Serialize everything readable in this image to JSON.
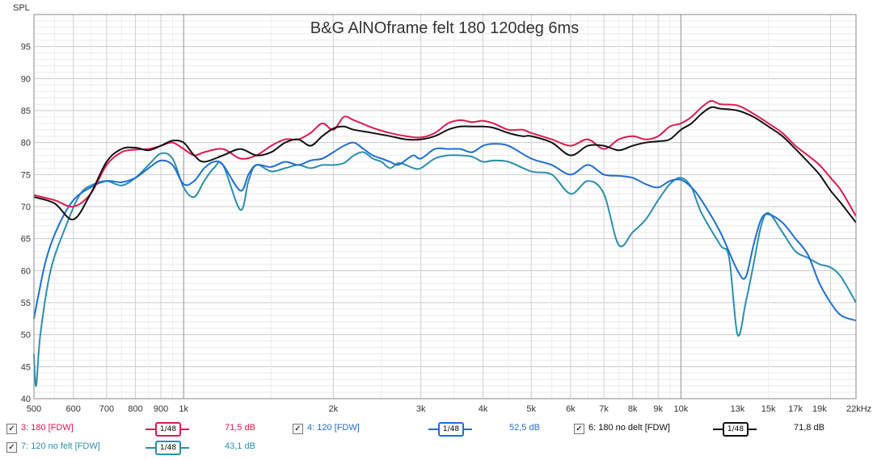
{
  "chart_data": {
    "type": "line",
    "title": "B&G AlNOframe felt 180 120deg 6ms",
    "ylabel": "SPL",
    "xlabel": "",
    "x_scale": "log",
    "xlim": [
      500,
      22500
    ],
    "ylim": [
      40,
      100
    ],
    "yticks": [
      40,
      45,
      50,
      55,
      60,
      65,
      70,
      75,
      80,
      85,
      90,
      95
    ],
    "xticks": [
      {
        "v": 500,
        "t": "500"
      },
      {
        "v": 600,
        "t": "600"
      },
      {
        "v": 700,
        "t": "700"
      },
      {
        "v": 800,
        "t": "800"
      },
      {
        "v": 900,
        "t": "900"
      },
      {
        "v": 1000,
        "t": "1k"
      },
      {
        "v": 2000,
        "t": "2k"
      },
      {
        "v": 3000,
        "t": "3k"
      },
      {
        "v": 4000,
        "t": "4k"
      },
      {
        "v": 5000,
        "t": "5k"
      },
      {
        "v": 6000,
        "t": "6k"
      },
      {
        "v": 7000,
        "t": "7k"
      },
      {
        "v": 8000,
        "t": "8k"
      },
      {
        "v": 9000,
        "t": "9k"
      },
      {
        "v": 10000,
        "t": "10k"
      },
      {
        "v": 13000,
        "t": "13k"
      },
      {
        "v": 15000,
        "t": "15k"
      },
      {
        "v": 17000,
        "t": "17k"
      },
      {
        "v": 19000,
        "t": "19k"
      },
      {
        "v": 22000,
        "t": "22kHz"
      }
    ],
    "grid": true,
    "series": [
      {
        "name": "3: 180 [FDW]",
        "color": "#e0194d",
        "smoothing": "1/48",
        "value": "71,5 dB",
        "points": [
          [
            500,
            71.8
          ],
          [
            550,
            71
          ],
          [
            600,
            70
          ],
          [
            650,
            72
          ],
          [
            700,
            76.5
          ],
          [
            750,
            78.5
          ],
          [
            800,
            78.9
          ],
          [
            850,
            79
          ],
          [
            900,
            79.5
          ],
          [
            950,
            80
          ],
          [
            1000,
            79
          ],
          [
            1050,
            78
          ],
          [
            1100,
            78.5
          ],
          [
            1200,
            79
          ],
          [
            1300,
            77.5
          ],
          [
            1400,
            78
          ],
          [
            1500,
            79.5
          ],
          [
            1600,
            80.5
          ],
          [
            1700,
            80.5
          ],
          [
            1800,
            81.5
          ],
          [
            1900,
            83
          ],
          [
            2000,
            82
          ],
          [
            2100,
            84
          ],
          [
            2200,
            83.5
          ],
          [
            2400,
            82.3
          ],
          [
            2600,
            81.5
          ],
          [
            2800,
            81
          ],
          [
            3000,
            80.8
          ],
          [
            3200,
            81.5
          ],
          [
            3400,
            83
          ],
          [
            3600,
            83.5
          ],
          [
            3800,
            83.2
          ],
          [
            4000,
            83.4
          ],
          [
            4200,
            83
          ],
          [
            4500,
            82
          ],
          [
            4800,
            82
          ],
          [
            5000,
            81.5
          ],
          [
            5500,
            80.5
          ],
          [
            6000,
            79.5
          ],
          [
            6500,
            80.5
          ],
          [
            7000,
            79
          ],
          [
            7500,
            80.5
          ],
          [
            8000,
            81
          ],
          [
            8500,
            80.5
          ],
          [
            9000,
            81
          ],
          [
            9500,
            82.5
          ],
          [
            10000,
            83
          ],
          [
            10500,
            84
          ],
          [
            11000,
            85.5
          ],
          [
            11500,
            86.5
          ],
          [
            12000,
            86
          ],
          [
            13000,
            85.8
          ],
          [
            14000,
            84.5
          ],
          [
            15000,
            83
          ],
          [
            16000,
            81.5
          ],
          [
            17000,
            79.5
          ],
          [
            18000,
            78
          ],
          [
            19000,
            76.5
          ],
          [
            20000,
            74.5
          ],
          [
            21000,
            72.5
          ],
          [
            22500,
            68.5
          ]
        ]
      },
      {
        "name": "4: 120 [FDW]",
        "color": "#1f6fd1",
        "smoothing": "1/48",
        "value": "52,5 dB",
        "points": [
          [
            500,
            52.5
          ],
          [
            510,
            56
          ],
          [
            530,
            62
          ],
          [
            560,
            67
          ],
          [
            600,
            71
          ],
          [
            650,
            73
          ],
          [
            700,
            74
          ],
          [
            750,
            73.8
          ],
          [
            800,
            74.5
          ],
          [
            850,
            76
          ],
          [
            900,
            77.2
          ],
          [
            950,
            76.5
          ],
          [
            1000,
            73.5
          ],
          [
            1050,
            74
          ],
          [
            1100,
            76
          ],
          [
            1150,
            77
          ],
          [
            1200,
            76.5
          ],
          [
            1300,
            72.5
          ],
          [
            1350,
            75
          ],
          [
            1400,
            76.5
          ],
          [
            1500,
            76.2
          ],
          [
            1600,
            77
          ],
          [
            1700,
            76.5
          ],
          [
            1800,
            77.2
          ],
          [
            1900,
            77.5
          ],
          [
            2000,
            78.5
          ],
          [
            2100,
            79.5
          ],
          [
            2200,
            80
          ],
          [
            2300,
            79
          ],
          [
            2400,
            78
          ],
          [
            2500,
            77.5
          ],
          [
            2600,
            77
          ],
          [
            2700,
            76.5
          ],
          [
            2800,
            77.3
          ],
          [
            2900,
            78
          ],
          [
            3000,
            77.5
          ],
          [
            3200,
            79
          ],
          [
            3400,
            79
          ],
          [
            3600,
            79
          ],
          [
            3800,
            78.5
          ],
          [
            4000,
            79.5
          ],
          [
            4200,
            79.8
          ],
          [
            4500,
            79.5
          ],
          [
            5000,
            77.5
          ],
          [
            5500,
            76.5
          ],
          [
            6000,
            75
          ],
          [
            6500,
            76.5
          ],
          [
            7000,
            75
          ],
          [
            7500,
            74.8
          ],
          [
            8000,
            74.5
          ],
          [
            8500,
            73.5
          ],
          [
            9000,
            73
          ],
          [
            9500,
            74
          ],
          [
            10000,
            74.2
          ],
          [
            10500,
            73
          ],
          [
            11000,
            71
          ],
          [
            12000,
            66
          ],
          [
            13000,
            60
          ],
          [
            13500,
            59
          ],
          [
            14000,
            64
          ],
          [
            14500,
            68
          ],
          [
            15000,
            68.8
          ],
          [
            16000,
            67.5
          ],
          [
            17000,
            65
          ],
          [
            18000,
            62.5
          ],
          [
            19000,
            58
          ],
          [
            20000,
            55
          ],
          [
            21000,
            53
          ],
          [
            22500,
            52.2
          ]
        ]
      },
      {
        "name": "6: 180 no delt [FDW]",
        "color": "#111111",
        "smoothing": "1/48",
        "value": "71,8 dB",
        "points": [
          [
            500,
            71.5
          ],
          [
            550,
            70.5
          ],
          [
            600,
            68
          ],
          [
            650,
            72
          ],
          [
            700,
            77
          ],
          [
            750,
            79
          ],
          [
            800,
            79.2
          ],
          [
            850,
            78.8
          ],
          [
            900,
            79.5
          ],
          [
            950,
            80.3
          ],
          [
            1000,
            80
          ],
          [
            1050,
            78
          ],
          [
            1100,
            77
          ],
          [
            1200,
            78
          ],
          [
            1300,
            79
          ],
          [
            1400,
            78
          ],
          [
            1500,
            78.5
          ],
          [
            1600,
            80
          ],
          [
            1700,
            80.5
          ],
          [
            1800,
            79.5
          ],
          [
            1900,
            81
          ],
          [
            2000,
            82.2
          ],
          [
            2100,
            82.5
          ],
          [
            2200,
            82
          ],
          [
            2400,
            81.5
          ],
          [
            2600,
            81
          ],
          [
            2800,
            80.5
          ],
          [
            3000,
            80.5
          ],
          [
            3200,
            81
          ],
          [
            3400,
            82
          ],
          [
            3600,
            82.5
          ],
          [
            3800,
            82.5
          ],
          [
            4000,
            82.5
          ],
          [
            4200,
            82.3
          ],
          [
            4500,
            81.5
          ],
          [
            4800,
            81
          ],
          [
            5000,
            81
          ],
          [
            5500,
            80
          ],
          [
            6000,
            78
          ],
          [
            6500,
            79.5
          ],
          [
            7000,
            79.5
          ],
          [
            7500,
            78.8
          ],
          [
            8000,
            79.5
          ],
          [
            8500,
            80
          ],
          [
            9000,
            80.2
          ],
          [
            9500,
            80.5
          ],
          [
            10000,
            82
          ],
          [
            10500,
            83
          ],
          [
            11000,
            84.5
          ],
          [
            11500,
            85.5
          ],
          [
            12000,
            85.3
          ],
          [
            13000,
            85
          ],
          [
            14000,
            84
          ],
          [
            15000,
            82.5
          ],
          [
            16000,
            81
          ],
          [
            17000,
            79
          ],
          [
            18000,
            77
          ],
          [
            19000,
            75
          ],
          [
            20000,
            72.5
          ],
          [
            21000,
            70.5
          ],
          [
            22500,
            67.5
          ]
        ]
      },
      {
        "name": "7: 120 no felt [FDW]",
        "color": "#2a8fae",
        "smoothing": "1/48",
        "value": "43,1 dB",
        "points": [
          [
            500,
            47
          ],
          [
            505,
            42
          ],
          [
            515,
            50
          ],
          [
            540,
            60
          ],
          [
            580,
            67
          ],
          [
            620,
            72
          ],
          [
            660,
            73.5
          ],
          [
            700,
            74
          ],
          [
            750,
            73.3
          ],
          [
            800,
            74.5
          ],
          [
            850,
            76.5
          ],
          [
            900,
            78.3
          ],
          [
            950,
            77.5
          ],
          [
            1000,
            73
          ],
          [
            1050,
            71.5
          ],
          [
            1100,
            74
          ],
          [
            1150,
            76
          ],
          [
            1200,
            76.5
          ],
          [
            1300,
            69.5
          ],
          [
            1350,
            74
          ],
          [
            1400,
            76.5
          ],
          [
            1500,
            75.5
          ],
          [
            1600,
            76
          ],
          [
            1700,
            76.5
          ],
          [
            1800,
            76
          ],
          [
            1900,
            76.5
          ],
          [
            2000,
            76.5
          ],
          [
            2100,
            76.8
          ],
          [
            2200,
            78
          ],
          [
            2300,
            78.5
          ],
          [
            2400,
            77.5
          ],
          [
            2500,
            77
          ],
          [
            2600,
            76
          ],
          [
            2700,
            76.8
          ],
          [
            2800,
            76.5
          ],
          [
            2900,
            76
          ],
          [
            3000,
            76
          ],
          [
            3200,
            77.5
          ],
          [
            3400,
            78
          ],
          [
            3600,
            78
          ],
          [
            3800,
            77.8
          ],
          [
            4000,
            77
          ],
          [
            4200,
            77.2
          ],
          [
            4500,
            77
          ],
          [
            5000,
            75.5
          ],
          [
            5500,
            75
          ],
          [
            6000,
            72
          ],
          [
            6500,
            74
          ],
          [
            7000,
            72
          ],
          [
            7500,
            64
          ],
          [
            8000,
            66
          ],
          [
            8500,
            68
          ],
          [
            9000,
            71
          ],
          [
            9500,
            73.5
          ],
          [
            10000,
            74.5
          ],
          [
            10500,
            73
          ],
          [
            11000,
            69
          ],
          [
            12000,
            64
          ],
          [
            12500,
            62
          ],
          [
            13000,
            50
          ],
          [
            13500,
            55
          ],
          [
            14000,
            61
          ],
          [
            14500,
            67
          ],
          [
            15000,
            69
          ],
          [
            16000,
            66
          ],
          [
            17000,
            63
          ],
          [
            18000,
            62
          ],
          [
            19000,
            61
          ],
          [
            20000,
            60.5
          ],
          [
            21000,
            59
          ],
          [
            22500,
            55
          ]
        ]
      }
    ]
  }
}
